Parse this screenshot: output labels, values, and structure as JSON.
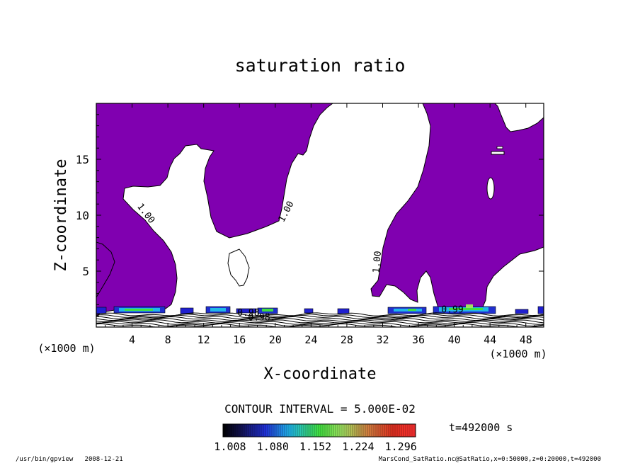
{
  "chart_data": {
    "type": "contour",
    "title": "saturation ratio",
    "xlabel": "X-coordinate",
    "ylabel": "Z-coordinate",
    "x_unit": "(×1000 m)",
    "z_unit": "(×1000 m)",
    "x_ticks": [
      4,
      8,
      12,
      16,
      20,
      24,
      28,
      32,
      36,
      40,
      44,
      48
    ],
    "z_ticks": [
      5,
      10,
      15
    ],
    "xlim": [
      0,
      50
    ],
    "zlim": [
      0,
      20
    ],
    "contour_labels": [
      {
        "text": "1.00",
        "x": 5.3,
        "z": 10.0,
        "angle": 52
      },
      {
        "text": "1.00",
        "x": 21.5,
        "z": 10.2,
        "angle": -62
      },
      {
        "text": "1.00",
        "x": 31.7,
        "z": 5.8,
        "angle": -85
      },
      {
        "text": "0.98",
        "x": 17.0,
        "z": 1.0,
        "angle": 0
      },
      {
        "text": "0.98",
        "x": 18.2,
        "z": 0.6,
        "angle": 0
      },
      {
        "text": "0.99",
        "x": 39.8,
        "z": 1.3,
        "angle": 0
      }
    ],
    "contour_interval_text": "CONTOUR INTERVAL = 5.000E-02",
    "time_text": "t=492000 s",
    "colorbar": {
      "tick_labels": [
        "1.008",
        "1.080",
        "1.152",
        "1.224",
        "1.296"
      ],
      "range": [
        1.008,
        1.296
      ]
    },
    "fill_color": "#8000b0",
    "footer_left": "/usr/bin/gpview   2008-12-21",
    "footer_right": "MarsCond_SatRatio.nc@SatRatio,x=0:50000,z=0:20000,t=492000"
  }
}
